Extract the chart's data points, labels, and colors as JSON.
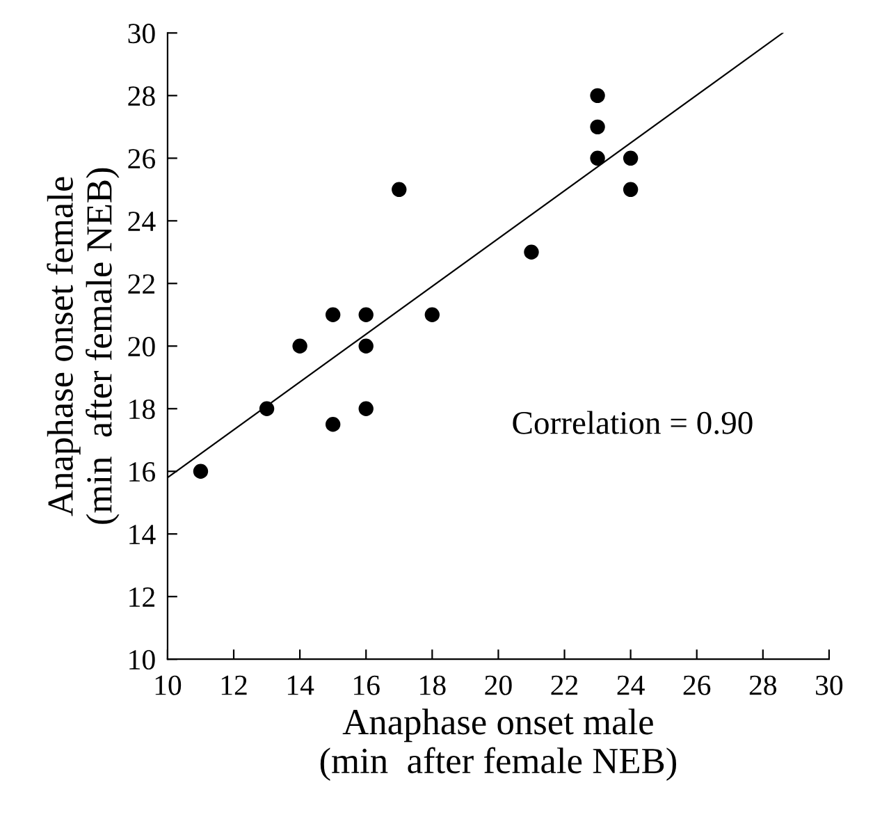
{
  "chart_data": [
    {
      "type": "scatter",
      "xlabel": "Anaphase onset male\n(min  after female NEB)",
      "ylabel": "Anaphase onset female\n(min  after female NEB)",
      "x": [
        11,
        13,
        14,
        15,
        15,
        16,
        16,
        16,
        17,
        18,
        21,
        23,
        23,
        23,
        24,
        24
      ],
      "series": [
        {
          "color": "#000000",
          "marker": "circle",
          "values": [
            16,
            18,
            20,
            21,
            17.5,
            21,
            20,
            18,
            25,
            21,
            23,
            28,
            27,
            26,
            26,
            25
          ]
        },
        {
          "type": "line",
          "color": "#000000",
          "x": [
            10,
            28.6
          ],
          "values": [
            15.8,
            30
          ]
        }
      ],
      "annotations": [
        "Correlation = 0.90"
      ],
      "xlim": [
        10,
        30
      ],
      "ylim": [
        10,
        30
      ],
      "xticks": [
        10,
        12,
        14,
        16,
        18,
        20,
        22,
        24,
        26,
        28,
        30
      ],
      "yticks": [
        10,
        12,
        14,
        16,
        18,
        20,
        22,
        24,
        26,
        28,
        30
      ],
      "grid": false,
      "legend": false
    }
  ]
}
